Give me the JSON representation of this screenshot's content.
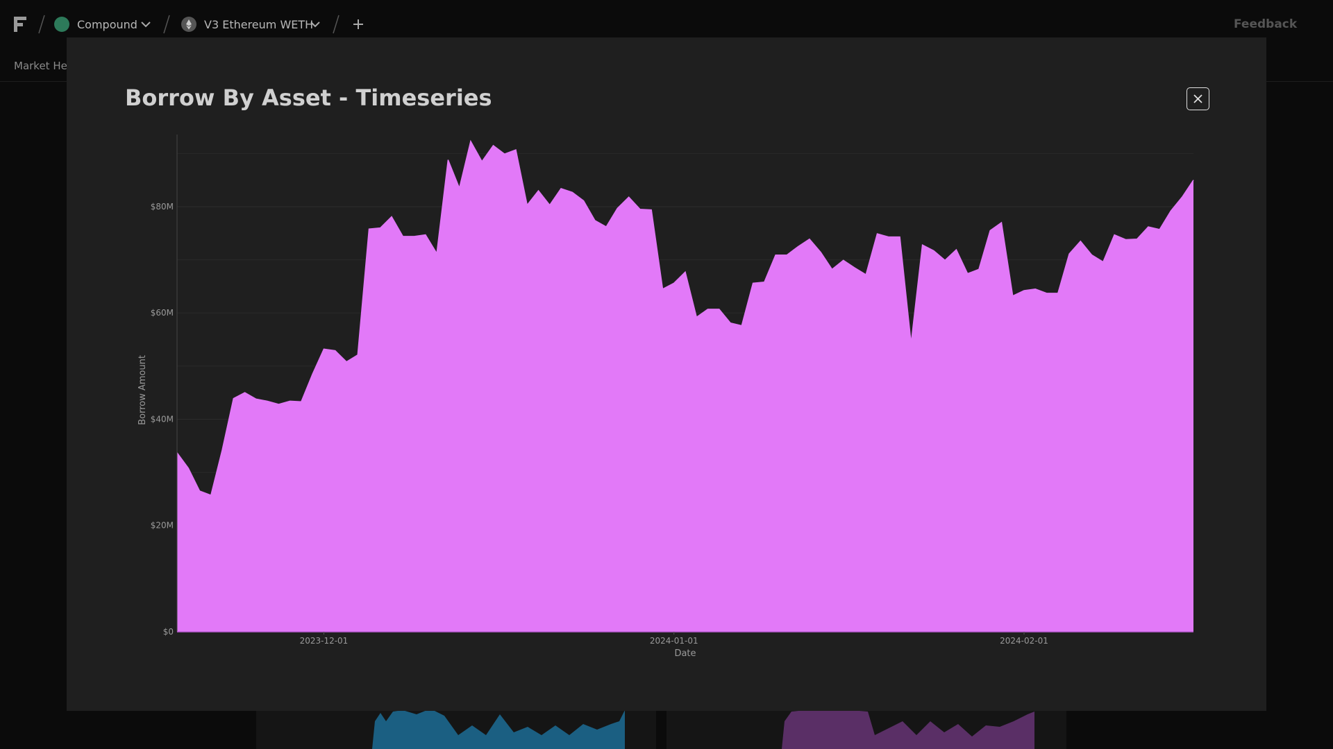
{
  "nav": {
    "items": [
      "Compound",
      "V3 Ethereum WETH"
    ],
    "feedback": "Feedback",
    "tab": "Market Hea"
  },
  "chart_data": {
    "type": "area",
    "title": "Borrow By Asset - Timeseries",
    "x_label": "Date",
    "y_label": "Borrow Amount",
    "color": "#e279f8",
    "x": [
      "2023-11-18",
      "2023-11-19",
      "2023-11-20",
      "2023-11-21",
      "2023-11-22",
      "2023-11-23",
      "2023-11-24",
      "2023-11-25",
      "2023-11-26",
      "2023-11-27",
      "2023-11-28",
      "2023-11-29",
      "2023-11-30",
      "2023-12-01",
      "2023-12-02",
      "2023-12-03",
      "2023-12-04",
      "2023-12-05",
      "2023-12-06",
      "2023-12-07",
      "2023-12-08",
      "2023-12-09",
      "2023-12-10",
      "2023-12-11",
      "2023-12-12",
      "2023-12-13",
      "2023-12-14",
      "2023-12-15",
      "2023-12-16",
      "2023-12-17",
      "2023-12-18",
      "2023-12-19",
      "2023-12-20",
      "2023-12-21",
      "2023-12-22",
      "2023-12-23",
      "2023-12-24",
      "2023-12-25",
      "2023-12-26",
      "2023-12-27",
      "2023-12-28",
      "2023-12-29",
      "2023-12-30",
      "2023-12-31",
      "2024-01-01",
      "2024-01-02",
      "2024-01-03",
      "2024-01-04",
      "2024-01-05",
      "2024-01-06",
      "2024-01-07",
      "2024-01-08",
      "2024-01-09",
      "2024-01-10",
      "2024-01-11",
      "2024-01-12",
      "2024-01-13",
      "2024-01-14",
      "2024-01-15",
      "2024-01-16",
      "2024-01-17",
      "2024-01-18",
      "2024-01-19",
      "2024-01-20",
      "2024-01-21",
      "2024-01-22",
      "2024-01-23",
      "2024-01-24",
      "2024-01-25",
      "2024-01-26",
      "2024-01-27",
      "2024-01-28",
      "2024-01-29",
      "2024-01-30",
      "2024-01-31",
      "2024-02-01",
      "2024-02-02",
      "2024-02-03",
      "2024-02-04",
      "2024-02-05",
      "2024-02-06",
      "2024-02-07",
      "2024-02-08",
      "2024-02-09",
      "2024-02-10",
      "2024-02-11",
      "2024-02-12",
      "2024-02-13",
      "2024-02-14",
      "2024-02-15",
      "2024-02-16"
    ],
    "values": [
      33700000,
      30800000,
      26500000,
      25700000,
      34200000,
      43900000,
      45000000,
      43800000,
      43400000,
      42800000,
      43400000,
      43300000,
      48500000,
      53200000,
      52900000,
      50800000,
      52100000,
      75800000,
      76000000,
      78100000,
      74400000,
      74400000,
      74700000,
      71200000,
      88800000,
      83500000,
      92300000,
      88500000,
      91500000,
      89900000,
      90700000,
      80300000,
      83000000,
      80300000,
      83400000,
      82700000,
      81100000,
      77400000,
      76200000,
      79700000,
      81800000,
      79500000,
      79400000,
      64500000,
      65600000,
      67700000,
      59200000,
      60700000,
      60700000,
      58100000,
      57600000,
      65600000,
      65800000,
      70900000,
      70900000,
      72500000,
      73900000,
      71400000,
      68200000,
      69900000,
      68500000,
      67200000,
      74900000,
      74300000,
      74300000,
      54300000,
      72800000,
      71700000,
      69900000,
      71900000,
      67400000,
      68200000,
      75500000,
      77000000,
      63200000,
      64200000,
      64500000,
      63700000,
      63700000,
      71100000,
      73500000,
      70900000,
      69600000,
      74700000,
      73800000,
      73900000,
      76200000,
      75700000,
      79200000,
      81800000,
      85000000
    ],
    "xlim": [
      "2023-11-18",
      "2024-02-16"
    ],
    "xticks": [
      "2023-12-01",
      "2024-01-01",
      "2024-02-01"
    ],
    "ylim": [
      0,
      92000000
    ],
    "yticks": [
      {
        "value": 0,
        "label": "$0"
      },
      {
        "value": 20000000,
        "label": "$20M"
      },
      {
        "value": 40000000,
        "label": "$40M"
      },
      {
        "value": 60000000,
        "label": "$60M"
      },
      {
        "value": 80000000,
        "label": "$80M"
      }
    ],
    "minor_yticks": [
      10000000,
      30000000,
      50000000,
      70000000,
      90000000
    ],
    "grid": true
  }
}
